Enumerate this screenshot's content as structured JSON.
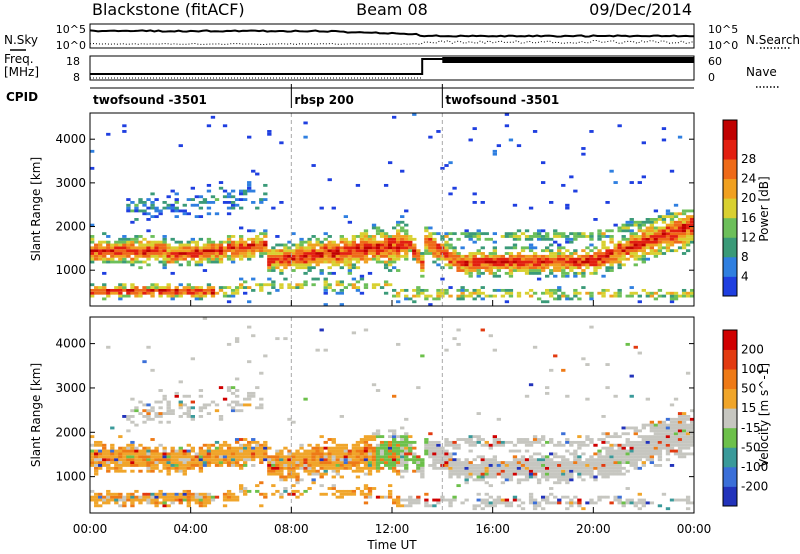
{
  "header": {
    "station": "Blackstone (fitACF)",
    "beam": "Beam 08",
    "date": "09/Dec/2014"
  },
  "panels": {
    "nsky_label": "N.Sky",
    "nsky_ticks": [
      "10^5",
      "10^0"
    ],
    "nsearch_label": "N.Search",
    "nsearch_ticks": [
      "10^5",
      "10^0"
    ],
    "freq_label": "Freq.",
    "freq_unit": "[MHz]",
    "freq_ticks": [
      "18",
      "8"
    ],
    "nave_label": "Nave",
    "nave_ticks": [
      "60",
      "0"
    ],
    "cpid_label": "CPID"
  },
  "chart_data": {
    "type": "heatmap",
    "cpid_segments": [
      {
        "start_hour": 0,
        "end_hour": 8,
        "label": "twofsound -3501"
      },
      {
        "start_hour": 8,
        "end_hour": 14,
        "label": "rbsp 200"
      },
      {
        "start_hour": 14,
        "end_hour": 24,
        "label": "twofsound -3501"
      }
    ],
    "x": {
      "label": "Time UT",
      "range_hours": [
        0,
        24
      ],
      "ticks": [
        "00:00",
        "04:00",
        "08:00",
        "12:00",
        "16:00",
        "20:00",
        "00:00"
      ]
    },
    "y": {
      "label": "Slant Range [km]",
      "range_km": [
        180,
        4600
      ],
      "ticks": [
        "1000",
        "2000",
        "3000",
        "4000"
      ],
      "tick_values": [
        1000,
        2000,
        3000,
        4000
      ]
    },
    "power": {
      "label": "Power [dB]",
      "colorbar_ticks": [
        "4",
        "8",
        "12",
        "16",
        "20",
        "24",
        "28"
      ],
      "colors": [
        "#1f3fe0",
        "#2f7fe0",
        "#3a9a78",
        "#6cbf5a",
        "#d8d030",
        "#f0a020",
        "#ee6a18",
        "#e21f10",
        "#c00000"
      ]
    },
    "velocity": {
      "label": "Velocity [m s^-1]",
      "colorbar_ticks": [
        "200",
        "100",
        "50",
        "15",
        "-15",
        "-50",
        "-100",
        "-200"
      ],
      "colors": [
        "#2233bb",
        "#3b6fd8",
        "#3a9a9a",
        "#6cc04a",
        "#c6c6c0",
        "#f0a52a",
        "#ee7a16",
        "#e23a10",
        "#d00000"
      ]
    }
  }
}
